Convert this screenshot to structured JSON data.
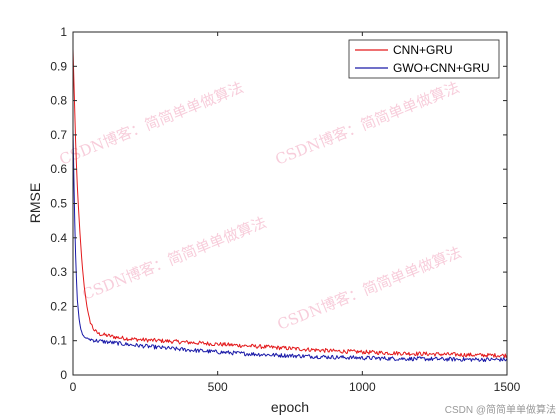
{
  "chart_data": {
    "type": "line",
    "title": "",
    "xlabel": "epoch",
    "ylabel": "RMSE",
    "xlim": [
      0,
      1500
    ],
    "ylim": [
      0,
      1
    ],
    "xticks": [
      0,
      500,
      1000,
      1500
    ],
    "yticks": [
      0,
      0.1,
      0.2,
      0.3,
      0.4,
      0.5,
      0.6,
      0.7,
      0.8,
      0.9,
      1
    ],
    "grid": false,
    "legend_position": "top-right",
    "series": [
      {
        "name": "CNN+GRU",
        "color": "#e31a1c",
        "x": [
          0,
          5,
          10,
          15,
          20,
          25,
          30,
          35,
          40,
          45,
          50,
          55,
          60,
          65,
          70,
          80,
          90,
          100,
          120,
          150,
          200,
          250,
          300,
          400,
          500,
          600,
          700,
          800,
          900,
          1000,
          1100,
          1200,
          1300,
          1400,
          1500
        ],
        "y": [
          0.95,
          0.8,
          0.65,
          0.55,
          0.47,
          0.4,
          0.34,
          0.29,
          0.25,
          0.22,
          0.19,
          0.17,
          0.155,
          0.145,
          0.135,
          0.125,
          0.12,
          0.118,
          0.115,
          0.11,
          0.105,
          0.102,
          0.1,
          0.095,
          0.09,
          0.085,
          0.08,
          0.075,
          0.07,
          0.067,
          0.064,
          0.062,
          0.06,
          0.058,
          0.057
        ]
      },
      {
        "name": "GWO+CNN+GRU",
        "color": "#1a1aa8",
        "x": [
          0,
          5,
          10,
          15,
          20,
          25,
          30,
          35,
          40,
          45,
          50,
          55,
          60,
          70,
          80,
          100,
          150,
          200,
          300,
          400,
          500,
          600,
          700,
          800,
          900,
          1000,
          1100,
          1200,
          1300,
          1400,
          1500
        ],
        "y": [
          0.72,
          0.48,
          0.32,
          0.22,
          0.17,
          0.14,
          0.125,
          0.115,
          0.11,
          0.108,
          0.106,
          0.105,
          0.104,
          0.102,
          0.1,
          0.098,
          0.093,
          0.088,
          0.08,
          0.073,
          0.067,
          0.062,
          0.058,
          0.055,
          0.052,
          0.05,
          0.048,
          0.047,
          0.046,
          0.045,
          0.045
        ]
      }
    ]
  },
  "watermark": {
    "text": "CSDN博客：简简单单做算法"
  },
  "footer": {
    "text": "CSDN @简简单单做算法"
  }
}
